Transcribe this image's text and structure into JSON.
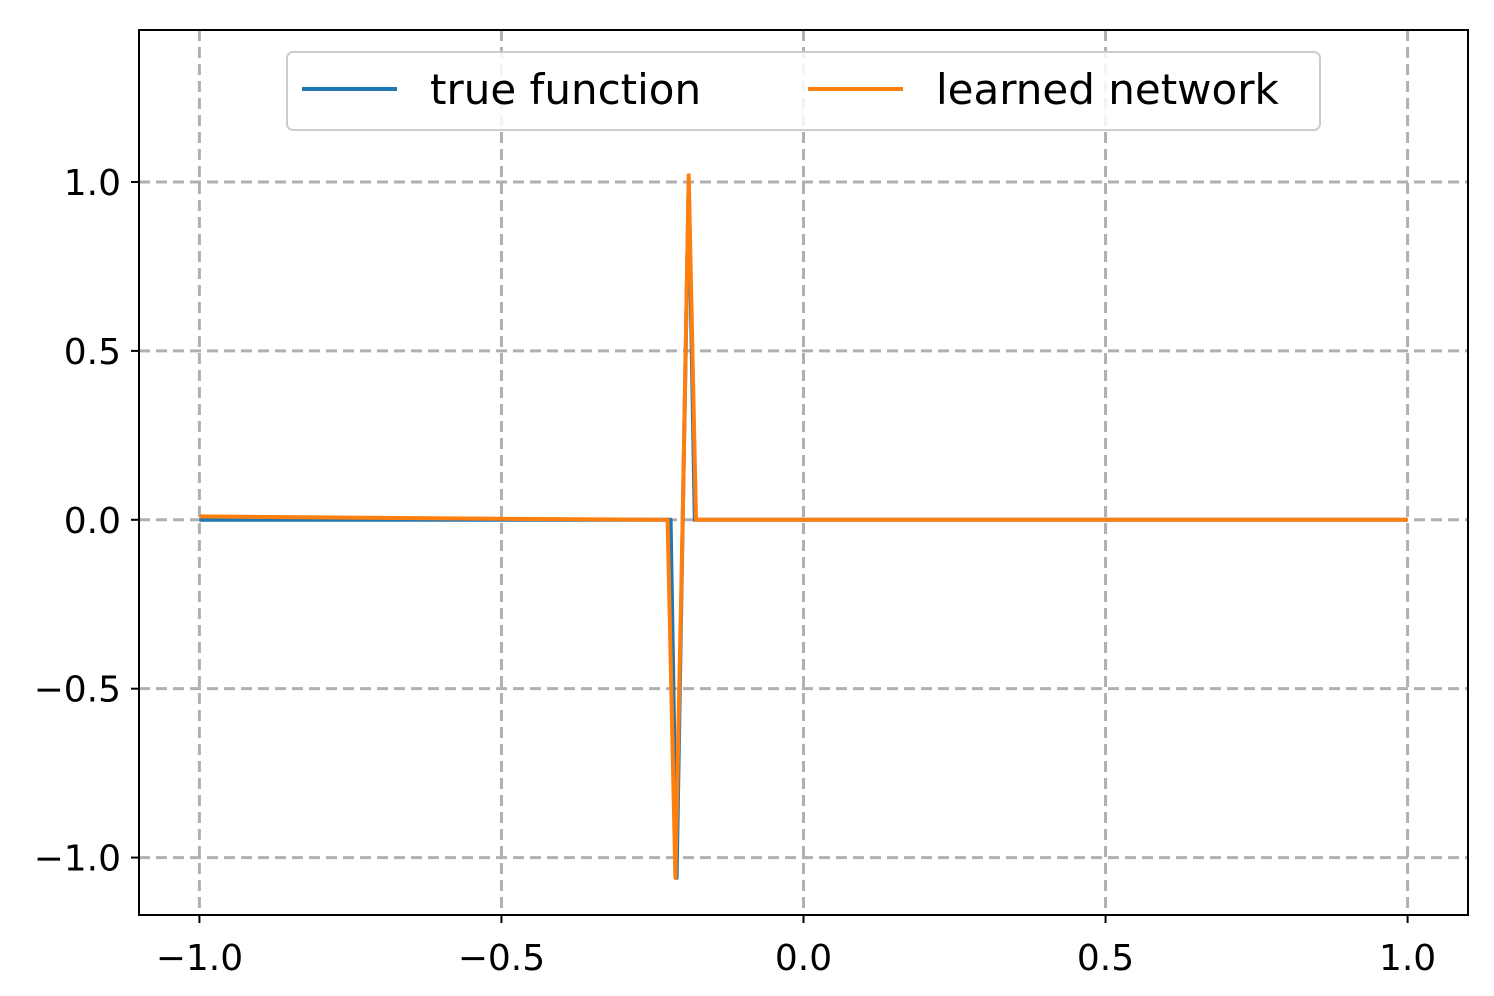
{
  "chart_data": {
    "type": "line",
    "title": "",
    "xlabel": "",
    "ylabel": "",
    "xlim": [
      -1.1,
      1.1
    ],
    "ylim": [
      -1.17,
      1.45
    ],
    "xticks": [
      -1.0,
      -0.5,
      0.0,
      0.5,
      1.0
    ],
    "yticks": [
      -1.0,
      -0.5,
      0.0,
      0.5,
      1.0
    ],
    "xtick_labels": [
      "−1.0",
      "−0.5",
      "0.0",
      "0.5",
      "1.0"
    ],
    "ytick_labels": [
      "−1.0",
      "−0.5",
      "0.0",
      "0.5",
      "1.0"
    ],
    "grid": true,
    "grid_style": "dashed",
    "legend_position": "upper center",
    "colors": {
      "grid": "#b0b0b0",
      "axes": "#000000"
    },
    "series": [
      {
        "name": "true function",
        "color": "#1f77b4",
        "x": [
          -1.0,
          -0.5,
          -0.3,
          -0.22,
          -0.21,
          -0.2,
          -0.19,
          -0.18,
          -0.1,
          0.0,
          0.5,
          1.0
        ],
        "y": [
          0.0,
          0.0,
          0.0,
          0.0,
          -1.06,
          0.0,
          1.0,
          0.0,
          0.0,
          0.0,
          0.0,
          0.0
        ]
      },
      {
        "name": "learned network",
        "color": "#ff7f0e",
        "x": [
          -1.0,
          -0.5,
          -0.3,
          -0.225,
          -0.212,
          -0.2,
          -0.19,
          -0.178,
          -0.1,
          0.0,
          0.5,
          1.0
        ],
        "y": [
          0.01,
          0.003,
          0.001,
          0.0,
          -1.06,
          0.0,
          1.02,
          0.0,
          0.0,
          0.0,
          0.0,
          0.0
        ]
      }
    ]
  }
}
